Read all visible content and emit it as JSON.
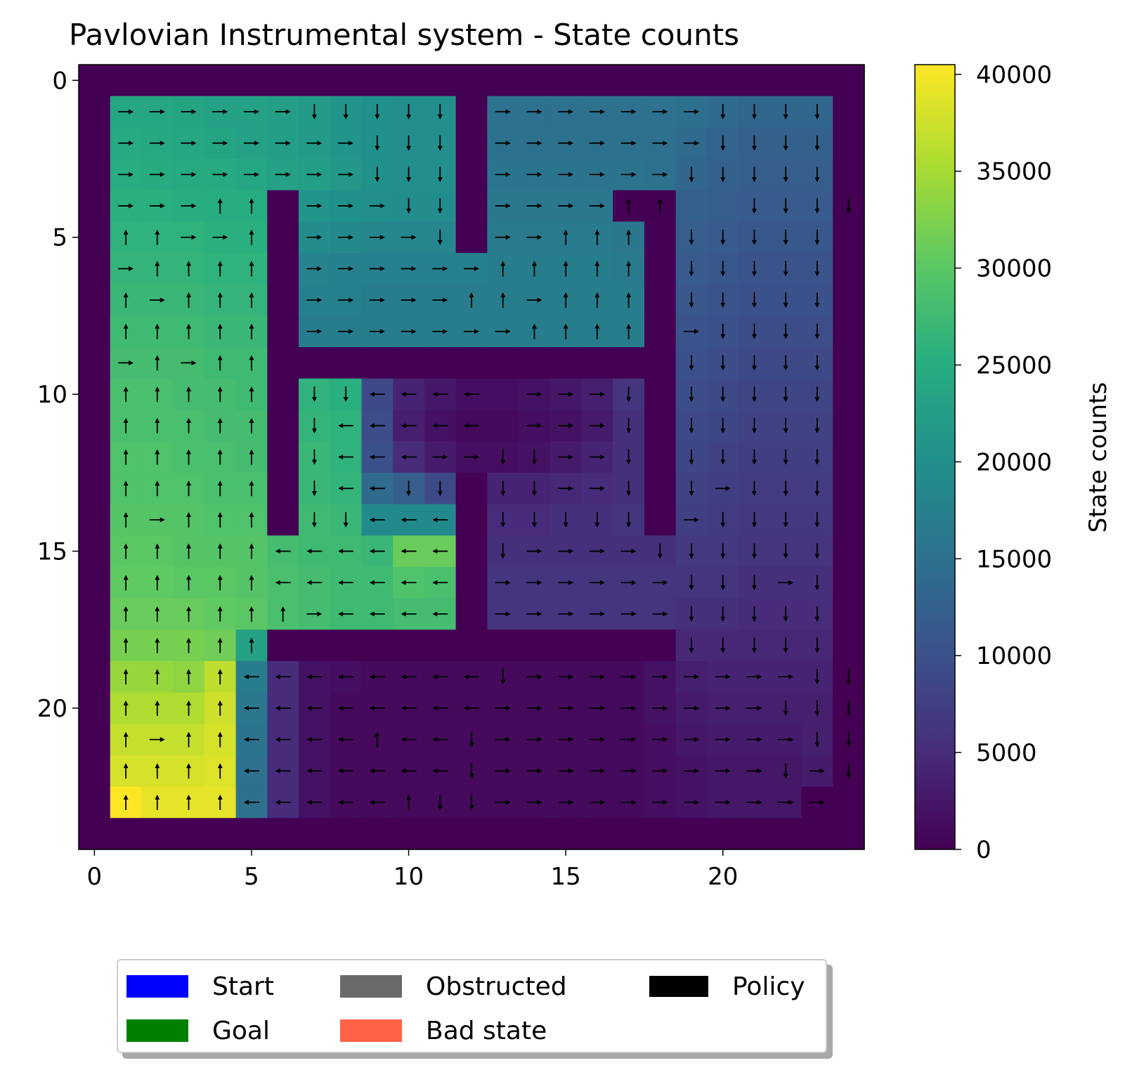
{
  "chart_data": {
    "type": "heatmap",
    "title": "Pavlovian Instrumental system - State counts",
    "grid_size": 25,
    "x_ticks": [
      "0",
      "5",
      "10",
      "15",
      "20"
    ],
    "y_ticks": [
      "0",
      "5",
      "10",
      "15",
      "20"
    ],
    "colorbar": {
      "label": "State counts",
      "colormap": "viridis",
      "range": [
        0,
        40500
      ],
      "ticks": [
        "0",
        "5000",
        "10000",
        "15000",
        "20000",
        "25000",
        "30000",
        "35000",
        "40000"
      ]
    },
    "legend": {
      "placement": "below",
      "entries": [
        {
          "label": "Start",
          "color": "#0000ff"
        },
        {
          "label": "Obstructed",
          "color": "#696969"
        },
        {
          "label": "Policy",
          "color": "#000000"
        },
        {
          "label": "Goal",
          "color": "#008000"
        },
        {
          "label": "Bad state",
          "color": "#ff6347"
        }
      ]
    },
    "counts": [
      [
        0,
        0,
        0,
        0,
        0,
        0,
        0,
        0,
        0,
        0,
        0,
        0,
        0,
        0,
        0,
        0,
        0,
        0,
        0,
        0,
        0,
        0,
        0,
        0,
        0
      ],
      [
        0,
        24000,
        24000,
        23500,
        23200,
        23000,
        22500,
        22000,
        21000,
        20500,
        20000,
        20000,
        0,
        15000,
        15000,
        15000,
        15000,
        15000,
        15000,
        14800,
        14000,
        13500,
        13500,
        13500,
        0
      ],
      [
        0,
        24500,
        24200,
        24000,
        23500,
        23000,
        22500,
        22000,
        21000,
        20500,
        20000,
        20000,
        0,
        15200,
        15200,
        15200,
        15200,
        15200,
        15000,
        14000,
        13000,
        12500,
        12500,
        12500,
        0
      ],
      [
        0,
        25000,
        24800,
        24500,
        24500,
        24000,
        23000,
        22500,
        21500,
        20500,
        20000,
        20000,
        0,
        15500,
        15500,
        15500,
        15500,
        15500,
        15200,
        13500,
        12500,
        12000,
        12000,
        12000,
        0
      ],
      [
        0,
        25500,
        25500,
        25000,
        25000,
        25000,
        0,
        21000,
        20500,
        20000,
        19500,
        19500,
        0,
        16000,
        16000,
        16000,
        16000,
        0,
        0,
        12500,
        12000,
        11500,
        11500,
        11500,
        0
      ],
      [
        0,
        26000,
        26000,
        26000,
        25500,
        25500,
        0,
        19500,
        19000,
        18500,
        18500,
        18500,
        0,
        16500,
        16500,
        16500,
        16500,
        16000,
        0,
        12000,
        11500,
        11000,
        11000,
        11000,
        0
      ],
      [
        0,
        26500,
        26500,
        26500,
        26000,
        26000,
        0,
        18000,
        17500,
        17500,
        17500,
        17500,
        17500,
        17000,
        17000,
        17000,
        17000,
        16500,
        0,
        11500,
        11000,
        10500,
        10500,
        10500,
        0
      ],
      [
        0,
        27000,
        27000,
        27000,
        26500,
        26500,
        0,
        17500,
        17500,
        17000,
        17000,
        17000,
        17000,
        17000,
        17000,
        17000,
        17000,
        17000,
        0,
        11000,
        10500,
        10000,
        10000,
        10000,
        0
      ],
      [
        0,
        27500,
        27500,
        27500,
        27000,
        27000,
        0,
        17000,
        17000,
        17000,
        17000,
        17000,
        17000,
        17000,
        17000,
        17000,
        17000,
        17000,
        0,
        10500,
        10000,
        9500,
        9500,
        9500,
        0
      ],
      [
        0,
        28000,
        28000,
        28000,
        27500,
        27500,
        0,
        0,
        0,
        0,
        0,
        0,
        0,
        0,
        0,
        0,
        0,
        0,
        0,
        10000,
        9500,
        9000,
        9000,
        9000,
        0
      ],
      [
        0,
        28500,
        28500,
        28000,
        28000,
        27500,
        0,
        26000,
        25500,
        9000,
        4000,
        2500,
        1500,
        1500,
        2000,
        2500,
        3500,
        6000,
        0,
        9500,
        9000,
        8500,
        8500,
        8500,
        0
      ],
      [
        0,
        28500,
        28500,
        28500,
        28000,
        28000,
        0,
        26500,
        26000,
        9500,
        3500,
        2000,
        1000,
        1000,
        1500,
        2000,
        3000,
        5500,
        0,
        9000,
        8500,
        8000,
        8000,
        8000,
        0
      ],
      [
        0,
        29000,
        29000,
        28500,
        28500,
        28000,
        0,
        27000,
        26000,
        10000,
        5000,
        3000,
        1500,
        1500,
        2000,
        3000,
        4000,
        5500,
        0,
        8500,
        8000,
        7500,
        7500,
        7500,
        0
      ],
      [
        0,
        29000,
        29000,
        29000,
        28500,
        28500,
        0,
        27000,
        26500,
        14000,
        12000,
        9000,
        0,
        4000,
        4000,
        4500,
        5000,
        5500,
        0,
        8000,
        7500,
        7000,
        7000,
        7000,
        0
      ],
      [
        0,
        29500,
        29500,
        29500,
        29000,
        29000,
        0,
        27500,
        27000,
        19000,
        19000,
        19000,
        0,
        5000,
        5000,
        5500,
        5500,
        6000,
        0,
        7500,
        7000,
        6500,
        6500,
        6500,
        0
      ],
      [
        0,
        30000,
        30000,
        29500,
        29500,
        29500,
        28000,
        27500,
        27500,
        27000,
        31000,
        31000,
        0,
        5500,
        5500,
        5500,
        5500,
        5500,
        5500,
        6500,
        6500,
        6000,
        6000,
        6000,
        0
      ],
      [
        0,
        30500,
        30500,
        30000,
        30000,
        29500,
        28500,
        28000,
        27500,
        27500,
        29000,
        28500,
        0,
        6000,
        6000,
        6000,
        6000,
        6000,
        6000,
        6000,
        6000,
        5500,
        5500,
        5500,
        0
      ],
      [
        0,
        31000,
        31000,
        31000,
        30500,
        30000,
        28500,
        28000,
        27500,
        27500,
        28000,
        28000,
        0,
        6000,
        6000,
        6000,
        6000,
        6000,
        6000,
        5500,
        5500,
        5000,
        5000,
        5000,
        0
      ],
      [
        0,
        32000,
        32000,
        32000,
        31500,
        23000,
        0,
        0,
        0,
        0,
        0,
        0,
        0,
        0,
        0,
        0,
        0,
        0,
        0,
        4500,
        4500,
        4500,
        4500,
        4500,
        0
      ],
      [
        0,
        34000,
        34000,
        33500,
        36500,
        17000,
        5000,
        2000,
        1500,
        1000,
        1000,
        1000,
        1000,
        1000,
        1000,
        1000,
        1000,
        1000,
        2000,
        3500,
        4000,
        4000,
        4000,
        4000,
        0
      ],
      [
        0,
        35500,
        35500,
        35500,
        37500,
        16000,
        5000,
        2000,
        1000,
        1000,
        1000,
        1000,
        1000,
        1000,
        1000,
        1000,
        1000,
        1000,
        2000,
        3000,
        3500,
        3500,
        3500,
        3500,
        0
      ],
      [
        0,
        37000,
        37000,
        37000,
        38000,
        15500,
        5000,
        2000,
        1000,
        1000,
        1000,
        1000,
        1000,
        1000,
        1000,
        1000,
        1000,
        1000,
        1500,
        2500,
        3000,
        3000,
        3000,
        3500,
        0
      ],
      [
        0,
        38000,
        38000,
        38000,
        38500,
        15000,
        5000,
        2000,
        1000,
        1000,
        1000,
        1000,
        1000,
        1000,
        1000,
        1000,
        1000,
        1000,
        1500,
        2000,
        2500,
        2500,
        2500,
        3000,
        0
      ],
      [
        0,
        40500,
        39000,
        39000,
        39000,
        15000,
        5000,
        2000,
        1000,
        1000,
        1000,
        1000,
        1000,
        1000,
        1000,
        1000,
        1000,
        1000,
        1500,
        2000,
        2500,
        2500,
        2500,
        0,
        0
      ],
      [
        0,
        0,
        0,
        0,
        0,
        0,
        0,
        0,
        0,
        0,
        0,
        0,
        0,
        0,
        0,
        0,
        0,
        0,
        0,
        0,
        0,
        0,
        0,
        0,
        0
      ]
    ],
    "policy": [
      ".........................",
      ".RRRRRRDDDDD.RRRRRRRDDDD.",
      ".RRRRRRRRDDD.RRRRRRRDDDD.",
      ".RRRRRRRRDDD.RRRRRRDDDDD.",
      ".RRRUU.RRRDD.RRRRUU..DDDD.",
      ".UURRU.RRRRD.RRUUU.DDDDD.",
      ".RUUUU.RRRRRRUUUUU.DDDDD.",
      ".URUUU.RRRRRUURUUU.DDDDD.",
      ".UUUUU.RRRRRRRUUUU.RDDDD.",
      ".RURUU.............DDDDD.",
      ".UUUUU.DDLLLL.RRRD.DDDDD.",
      ".UUUUU.DLLLLL.RRRD.DDDDD.",
      ".UUUUU.DLLLRRDDRRD.DDDDD.",
      ".UUUUU.DLLDD.DDRRD.DRDDD.",
      ".URUUU.DDLLL.DDDDD.RDDDD.",
      ".UUUUULLLLLL.DRRRRDDDDDD.",
      ".UUUUULLLLLL.RRRRRRDDDRD.",
      ".UUUUUURLLLL.RRRRRRDDDDD.",
      ".UUUUU.............DDDDD.",
      ".UUUULLLLLLLLDRRRRRRRRRDD.",
      ".UUUULLLLLLLLRRRRRRRRRDDD.",
      ".URUULLLLULLDRRRRRRRRRRDD.",
      ".UUUULLLLLLLDRRRRRRRRRDRD.",
      ".UUUULLLLLUDDRRRRRRRRRRR..",
      "........................."
    ]
  }
}
